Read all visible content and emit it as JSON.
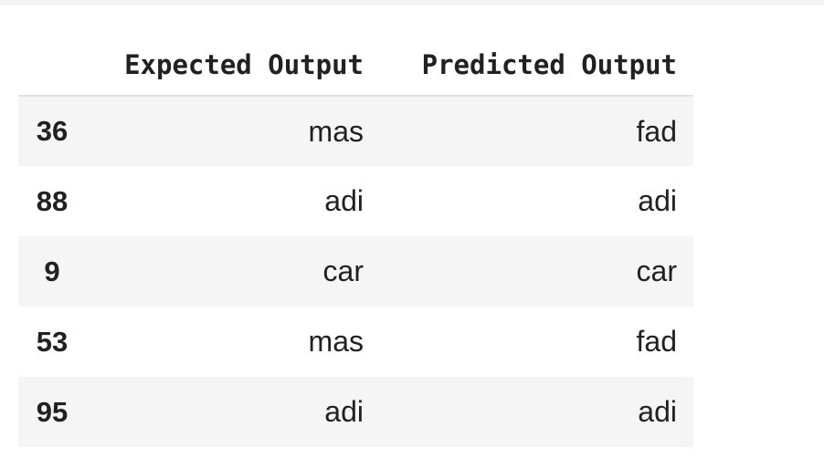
{
  "table": {
    "columns": [
      "Expected Output",
      "Predicted Output"
    ],
    "rows": [
      {
        "index": "36",
        "expected": "mas",
        "predicted": "fad"
      },
      {
        "index": "88",
        "expected": "adi",
        "predicted": "adi"
      },
      {
        "index": "9",
        "expected": "car",
        "predicted": "car"
      },
      {
        "index": "53",
        "expected": "mas",
        "predicted": "fad"
      },
      {
        "index": "95",
        "expected": "adi",
        "predicted": "adi"
      }
    ]
  }
}
